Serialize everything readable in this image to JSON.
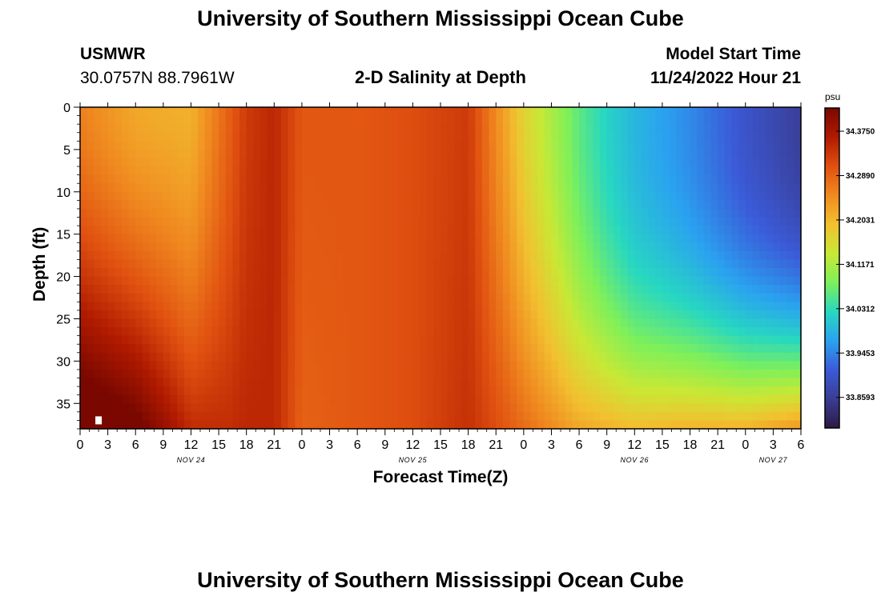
{
  "page": {
    "title_top": "University of Southern Mississippi Ocean Cube",
    "title_bottom": "University of Southern Mississippi Ocean Cube",
    "station_name": "USMWR",
    "station_coords": "30.0757N  88.7961W",
    "plot_title": "2-D Salinity at Depth",
    "model_start_label": "Model Start Time",
    "model_start_value": "11/24/2022 Hour 21"
  },
  "chart_data": {
    "type": "heatmap",
    "title": "2-D Salinity at Depth",
    "xlabel": "Forecast Time(Z)",
    "ylabel": "Depth (ft)",
    "x_ticks": [
      "0",
      "3",
      "6",
      "9",
      "12",
      "15",
      "18",
      "21",
      "0",
      "3",
      "6",
      "9",
      "12",
      "15",
      "18",
      "21",
      "0",
      "3",
      "6",
      "9",
      "12",
      "15",
      "18",
      "21",
      "0",
      "3",
      "6"
    ],
    "x_tick_hours": [
      0,
      3,
      6,
      9,
      12,
      15,
      18,
      21,
      24,
      27,
      30,
      33,
      36,
      39,
      42,
      45,
      48,
      51,
      54,
      57,
      60,
      63,
      66,
      69,
      72,
      75,
      78
    ],
    "day_labels": [
      {
        "label": "NOV 24",
        "hour": 12
      },
      {
        "label": "NOV 25",
        "hour": 36
      },
      {
        "label": "NOV 26",
        "hour": 60
      },
      {
        "label": "NOV 27",
        "hour": 75
      }
    ],
    "xlim": [
      0,
      78
    ],
    "y_ticks": [
      0,
      5,
      10,
      15,
      20,
      25,
      30,
      35
    ],
    "ylim": [
      0,
      38
    ],
    "y_inverted": true,
    "colorbar": {
      "unit": "psu",
      "labels": [
        "34.3750",
        "34.2890",
        "34.2031",
        "34.1171",
        "34.0312",
        "33.9453",
        "33.8593"
      ],
      "min": 33.8,
      "max": 34.42,
      "colors": [
        "#2c1a45",
        "#3a3d94",
        "#3b5bd8",
        "#2aa2f0",
        "#28d8c0",
        "#7ef05a",
        "#c9e835",
        "#f2c030",
        "#f08a20",
        "#e05010",
        "#b01a00",
        "#7a0800"
      ]
    },
    "field_description_points": {
      "hours": [
        0,
        6,
        12,
        18,
        21,
        24,
        30,
        36,
        42,
        48,
        54,
        57,
        60,
        66,
        72,
        78
      ],
      "surface_psu": [
        34.26,
        34.22,
        34.21,
        34.33,
        34.35,
        34.3,
        34.3,
        34.31,
        34.33,
        34.17,
        34.06,
        34.02,
        33.99,
        33.95,
        33.9,
        33.86
      ],
      "bottom_psu": [
        34.42,
        34.4,
        34.33,
        34.35,
        34.35,
        34.29,
        34.3,
        34.31,
        34.34,
        34.28,
        34.22,
        34.21,
        34.2,
        34.21,
        34.21,
        34.24
      ]
    },
    "marker": {
      "hour": 2,
      "depth": 37
    }
  }
}
